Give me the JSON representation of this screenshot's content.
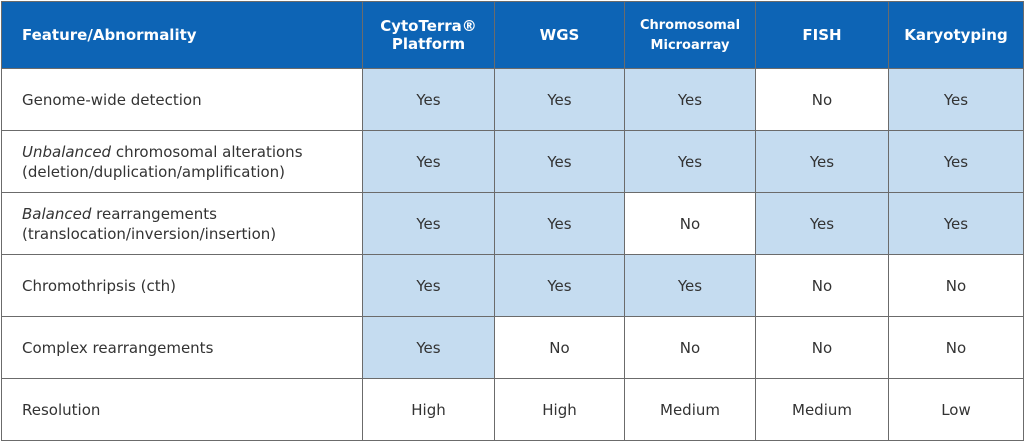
{
  "header": {
    "fill": "#0d64b5",
    "columns": [
      [
        "Feature/Abnormality"
      ],
      [
        "CytoTerra®",
        "Platform"
      ],
      [
        "WGS"
      ],
      [
        "Chromosomal",
        "Microarray"
      ],
      [
        "FISH"
      ],
      [
        "Karyotyping"
      ]
    ]
  },
  "rows": [
    {
      "feature": {
        "lines": [
          "Genome-wide detection"
        ]
      },
      "cells": [
        {
          "text": "Yes",
          "fill": "#c5dcf0"
        },
        {
          "text": "Yes",
          "fill": "#c5dcf0"
        },
        {
          "text": "Yes",
          "fill": "#c5dcf0"
        },
        {
          "text": "No",
          "fill": "#ffffff"
        },
        {
          "text": "Yes",
          "fill": "#c5dcf0"
        }
      ]
    },
    {
      "feature": {
        "emphasis": "Unbalanced",
        "lines": [
          "chromosomal alterations",
          "(deletion/duplication/amplification)"
        ]
      },
      "cells": [
        {
          "text": "Yes",
          "fill": "#c5dcf0"
        },
        {
          "text": "Yes",
          "fill": "#c5dcf0"
        },
        {
          "text": "Yes",
          "fill": "#c5dcf0"
        },
        {
          "text": "Yes",
          "fill": "#c5dcf0"
        },
        {
          "text": "Yes",
          "fill": "#c5dcf0"
        }
      ]
    },
    {
      "feature": {
        "emphasis": "Balanced",
        "lines": [
          "rearrangements",
          "(translocation/inversion/insertion)"
        ]
      },
      "cells": [
        {
          "text": "Yes",
          "fill": "#c5dcf0"
        },
        {
          "text": "Yes",
          "fill": "#c5dcf0"
        },
        {
          "text": "No",
          "fill": "#ffffff"
        },
        {
          "text": "Yes",
          "fill": "#c5dcf0"
        },
        {
          "text": "Yes",
          "fill": "#c5dcf0"
        }
      ]
    },
    {
      "feature": {
        "lines": [
          "Chromothripsis (cth)"
        ]
      },
      "cells": [
        {
          "text": "Yes",
          "fill": "#c5dcf0"
        },
        {
          "text": "Yes",
          "fill": "#c5dcf0"
        },
        {
          "text": "Yes",
          "fill": "#c5dcf0"
        },
        {
          "text": "No",
          "fill": "#ffffff"
        },
        {
          "text": "No",
          "fill": "#ffffff"
        }
      ]
    },
    {
      "feature": {
        "lines": [
          "Complex rearrangements"
        ]
      },
      "cells": [
        {
          "text": "Yes",
          "fill": "#c5dcf0"
        },
        {
          "text": "No",
          "fill": "#ffffff"
        },
        {
          "text": "No",
          "fill": "#ffffff"
        },
        {
          "text": "No",
          "fill": "#ffffff"
        },
        {
          "text": "No",
          "fill": "#ffffff"
        }
      ]
    },
    {
      "feature": {
        "lines": [
          "Resolution"
        ]
      },
      "cells": [
        {
          "text": "High",
          "fill": "#ffffff"
        },
        {
          "text": "High",
          "fill": "#ffffff"
        },
        {
          "text": "Medium",
          "fill": "#ffffff"
        },
        {
          "text": "Medium",
          "fill": "#ffffff"
        },
        {
          "text": "Low",
          "fill": "#ffffff"
        }
      ]
    }
  ]
}
